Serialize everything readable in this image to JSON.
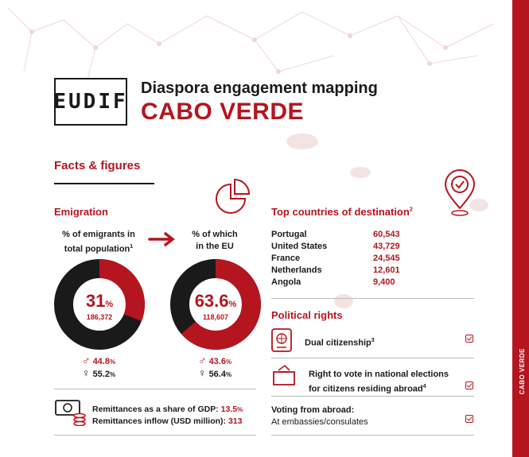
{
  "header": {
    "logo_text": "EUDIF",
    "title": "Diaspora engagement mapping",
    "country": "CABO VERDE"
  },
  "sidebar": {
    "label": "CABO VERDE"
  },
  "facts": {
    "heading": "Facts & figures"
  },
  "emigration": {
    "heading": "Emigration",
    "left": {
      "label_line1": "% of emigrants in",
      "label_line2": "total population",
      "label_sup": "1",
      "value": "31",
      "unit": "%",
      "count": "186,372",
      "fraction": 0.31,
      "male": "44.8",
      "female": "55.2"
    },
    "right": {
      "label_line1": "% of which",
      "label_line2": "in the EU",
      "value": "63.6",
      "unit": "%",
      "count": "118,607",
      "fraction": 0.636,
      "male": "43.6",
      "female": "56.4"
    },
    "gender_unit": "%"
  },
  "remittances": {
    "gdp_label": "Remittances as a share of GDP:",
    "gdp_value": "13.5",
    "inflow_label": "Remittances inflow (USD million):",
    "inflow_value": "313"
  },
  "destinations": {
    "heading": "Top countries of destination",
    "heading_sup": "2",
    "rows": [
      {
        "country": "Portugal",
        "value": "60,543"
      },
      {
        "country": "United States",
        "value": "43,729"
      },
      {
        "country": "France",
        "value": "24,545"
      },
      {
        "country": "Netherlands",
        "value": "12,601"
      },
      {
        "country": "Angola",
        "value": "9,400"
      }
    ]
  },
  "political": {
    "heading": "Political rights",
    "dual": "Dual citizenship",
    "dual_sup": "3",
    "vote_line1": "Right to vote in national elections",
    "vote_line2": "for citizens residing abroad",
    "vote_sup": "4",
    "abroad_title": "Voting from abroad:",
    "abroad_detail": "At embassies/consulates"
  },
  "colors": {
    "accent": "#b5151f",
    "dark": "#1a1a1a"
  }
}
